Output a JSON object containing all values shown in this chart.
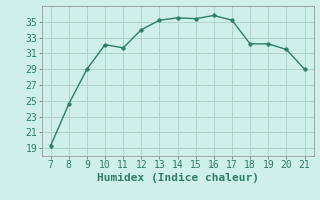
{
  "x": [
    7,
    8,
    9,
    10,
    11,
    12,
    13,
    14,
    15,
    16,
    17,
    18,
    19,
    20,
    21
  ],
  "y": [
    19.3,
    24.6,
    29.0,
    32.1,
    31.7,
    34.0,
    35.2,
    35.5,
    35.4,
    35.8,
    35.2,
    32.2,
    32.2,
    31.5,
    29.0
  ],
  "line_color": "#2e7d66",
  "marker_color": "#2e7d66",
  "bg_color": "#cff0ea",
  "grid_color": "#b0d4cc",
  "xlabel": "Humidex (Indice chaleur)",
  "xlim": [
    6.5,
    21.5
  ],
  "ylim": [
    18,
    37
  ],
  "yticks": [
    19,
    21,
    23,
    25,
    27,
    29,
    31,
    33,
    35
  ],
  "xticks": [
    7,
    8,
    9,
    10,
    11,
    12,
    13,
    14,
    15,
    16,
    17,
    18,
    19,
    20,
    21
  ],
  "xlabel_fontsize": 8,
  "tick_fontsize": 7,
  "line_width": 1.0,
  "marker_size": 2.5
}
